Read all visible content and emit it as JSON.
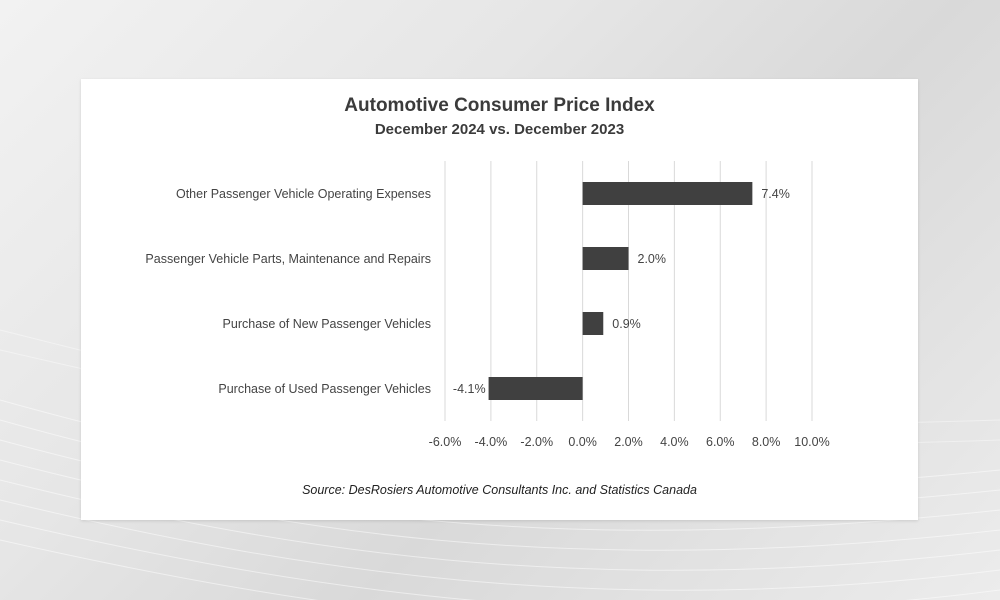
{
  "chart_data": {
    "type": "bar",
    "orientation": "horizontal",
    "title": "Automotive Consumer Price Index",
    "subtitle": "December 2024 vs. December 2023",
    "categories": [
      "Other Passenger Vehicle Operating Expenses",
      "Passenger Vehicle Parts, Maintenance and Repairs",
      "Purchase of New Passenger Vehicles",
      "Purchase of Used Passenger Vehicles"
    ],
    "values": [
      7.4,
      2.0,
      0.9,
      -4.1
    ],
    "data_labels": [
      "7.4%",
      "2.0%",
      "0.9%",
      "-4.1%"
    ],
    "xlim": [
      -6,
      10
    ],
    "xticks": [
      -6,
      -4,
      -2,
      0,
      2,
      4,
      6,
      8,
      10
    ],
    "xtick_labels": [
      "-6.0%",
      "-4.0%",
      "-2.0%",
      "0.0%",
      "2.0%",
      "4.0%",
      "6.0%",
      "8.0%",
      "10.0%"
    ],
    "grid": true,
    "bar_color": "#404040",
    "source": "Source:  DesRosiers Automotive Consultants Inc. and Statistics Canada"
  }
}
